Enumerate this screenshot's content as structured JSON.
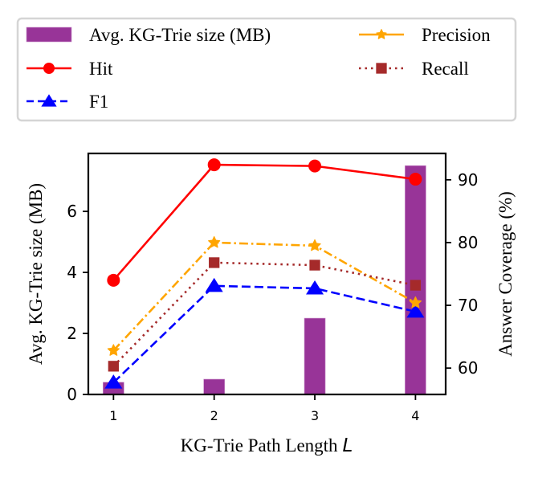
{
  "chart_data": {
    "type": "bar+line",
    "title": "",
    "xlabel": "KG-Trie Path Length",
    "xlabel_var": "L",
    "ylabel_left": "Avg. KG-Trie size (MB)",
    "ylabel_right": "Answer Coverage (%)",
    "x": [
      1,
      2,
      3,
      4
    ],
    "x_tick_labels": [
      "1",
      "2",
      "3",
      "4"
    ],
    "xlim": [
      0.75,
      4.3
    ],
    "ylim_left": [
      0,
      7.9
    ],
    "ylim_right": [
      55.8,
      94.2
    ],
    "y_ticks_left": [
      0,
      2,
      4,
      6
    ],
    "y_tick_labels_left": [
      "0",
      "2",
      "4",
      "6"
    ],
    "y_ticks_right": [
      60,
      70,
      80,
      90
    ],
    "y_tick_labels_right": [
      "60",
      "70",
      "80",
      "90"
    ],
    "grid": false,
    "legend_placement": "top (outside, above plot)",
    "legend_columns": 2,
    "bars": {
      "name": "Avg. KG-Trie size (MB)",
      "axis": "left",
      "color": "#983498",
      "values": [
        0.4,
        0.5,
        2.5,
        7.5
      ]
    },
    "series": [
      {
        "name": "Hit",
        "axis": "right",
        "color": "#ff0000",
        "linestyle": "solid",
        "marker": "circle",
        "values": [
          74.0,
          92.4,
          92.2,
          90.1
        ]
      },
      {
        "name": "F1",
        "axis": "right",
        "color": "#0000ff",
        "linestyle": "dashed",
        "marker": "triangle",
        "values": [
          57.7,
          73.1,
          72.7,
          69.0
        ]
      },
      {
        "name": "Precision",
        "axis": "right",
        "color": "#ffa500",
        "linestyle": "dashdot",
        "marker": "star",
        "values": [
          62.8,
          80.0,
          79.5,
          70.4
        ]
      },
      {
        "name": "Recall",
        "axis": "right",
        "color": "#a52a2a",
        "linestyle": "dotted",
        "marker": "square",
        "values": [
          60.3,
          76.8,
          76.4,
          73.2
        ]
      }
    ],
    "legend_entries": [
      "Avg. KG-Trie size (MB)",
      "Hit",
      "F1",
      "Precision",
      "Recall"
    ]
  }
}
